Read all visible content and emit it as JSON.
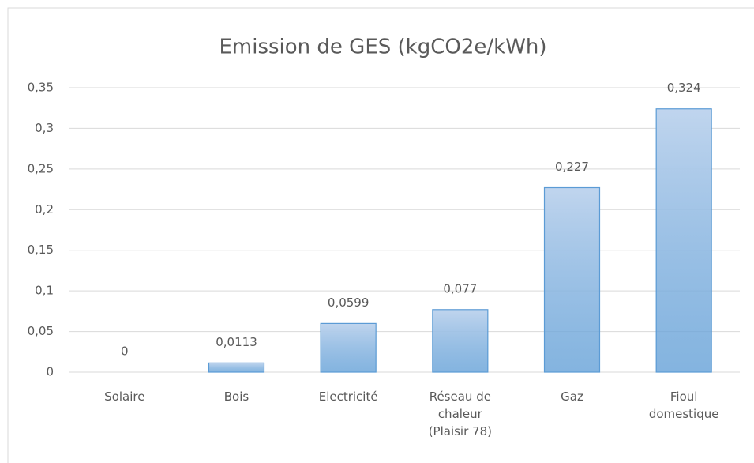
{
  "chart_data": {
    "type": "bar",
    "title": "Emission de GES (kgCO2e/kWh)",
    "categories": [
      "Solaire",
      "Bois",
      "Electricité",
      "Réseau de chaleur (Plaisir 78)",
      "Gaz",
      "Fioul domestique"
    ],
    "values": [
      0,
      0.0113,
      0.0599,
      0.077,
      0.227,
      0.324
    ],
    "value_labels": [
      "0",
      "0,0113",
      "0,0599",
      "0,077",
      "0,227",
      "0,324"
    ],
    "color": "#5b9bd5",
    "ylim": [
      0,
      0.35
    ],
    "yticks": [
      0,
      {
        "value": 0.05,
        "label": "0,05"
      },
      {
        "value": 0.1,
        "label": "0,1"
      },
      {
        "value": 0.15,
        "label": "0,15"
      },
      {
        "value": 0.2,
        "label": "0,2"
      },
      {
        "value": 0.25,
        "label": "0,25"
      },
      {
        "value": 0.3,
        "label": "0,3"
      },
      {
        "value": 0.35,
        "label": "0,35"
      }
    ],
    "grid": true
  }
}
